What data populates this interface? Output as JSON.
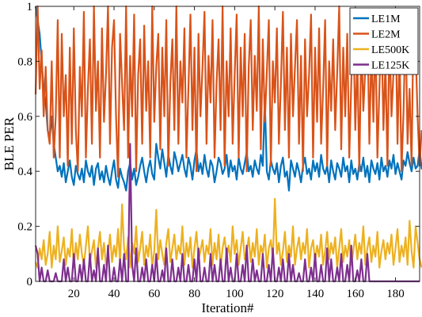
{
  "chart_data": {
    "type": "line",
    "title": "",
    "xlabel": "Iteration#",
    "ylabel": "BLE PER",
    "xlim": [
      1,
      192
    ],
    "ylim": [
      0,
      1
    ],
    "x_ticks": [
      20,
      40,
      60,
      80,
      100,
      120,
      140,
      160,
      180
    ],
    "x_tick_labels": [
      "20",
      "40",
      "60",
      "80",
      "100",
      "120",
      "140",
      "160",
      "180"
    ],
    "y_ticks": [
      0,
      0.2,
      0.4,
      0.6,
      0.8,
      1
    ],
    "y_tick_labels": [
      "0",
      "0.2",
      "0.4",
      "0.6",
      "0.8",
      "1"
    ],
    "grid": false,
    "legend_position": "top-right",
    "x_start": 1,
    "series": [
      {
        "name": "LE1M",
        "color": "#0072BD",
        "values": [
          1,
          0.95,
          0.9,
          0.8,
          0.7,
          0.65,
          0.55,
          0.52,
          0.6,
          0.5,
          0.45,
          0.4,
          0.42,
          0.38,
          0.43,
          0.36,
          0.4,
          0.44,
          0.38,
          0.35,
          0.42,
          0.39,
          0.37,
          0.41,
          0.36,
          0.44,
          0.4,
          0.38,
          0.42,
          0.35,
          0.41,
          0.43,
          0.37,
          0.4,
          0.36,
          0.42,
          0.38,
          0.35,
          0.4,
          0.44,
          0.37,
          0.34,
          0.41,
          0.38,
          0.36,
          0.33,
          0.4,
          0.43,
          0.37,
          0.41,
          0.35,
          0.38,
          0.42,
          0.45,
          0.4,
          0.36,
          0.41,
          0.44,
          0.39,
          0.37,
          0.5,
          0.45,
          0.41,
          0.48,
          0.43,
          0.38,
          0.46,
          0.42,
          0.39,
          0.47,
          0.44,
          0.4,
          0.43,
          0.46,
          0.41,
          0.38,
          0.45,
          0.42,
          0.37,
          0.44,
          0.48,
          0.4,
          0.43,
          0.39,
          0.46,
          0.41,
          0.38,
          0.44,
          0.42,
          0.36,
          0.4,
          0.45,
          0.43,
          0.39,
          0.41,
          0.46,
          0.38,
          0.44,
          0.4,
          0.42,
          0.37,
          0.45,
          0.41,
          0.39,
          0.43,
          0.47,
          0.4,
          0.42,
          0.38,
          0.44,
          0.41,
          0.39,
          0.46,
          0.42,
          0.66,
          0.4,
          0.37,
          0.44,
          0.41,
          0.39,
          0.43,
          0.36,
          0.42,
          0.45,
          0.38,
          0.4,
          0.33,
          0.44,
          0.41,
          0.38,
          0.43,
          0.4,
          0.36,
          0.42,
          0.45,
          0.39,
          0.41,
          0.37,
          0.44,
          0.4,
          0.43,
          0.38,
          0.46,
          0.41,
          0.39,
          0.42,
          0.36,
          0.44,
          0.4,
          0.37,
          0.43,
          0.41,
          0.38,
          0.45,
          0.4,
          0.42,
          0.36,
          0.44,
          0.39,
          0.41,
          0.37,
          0.43,
          0.4,
          0.45,
          0.38,
          0.42,
          0.36,
          0.44,
          0.41,
          0.39,
          0.43,
          0.37,
          0.45,
          0.4,
          0.42,
          0.38,
          0.44,
          0.41,
          0.46,
          0.39,
          0.43,
          0.4,
          0.37,
          0.44,
          0.42,
          0.47,
          0.43,
          0.4,
          0.45,
          0.41,
          0.42,
          0.48,
          0.41,
          0.42
        ]
      },
      {
        "name": "LE2M",
        "color": "#D95319",
        "values": [
          0.68,
          1,
          0.7,
          0.84,
          0.6,
          0.78,
          0.55,
          0.5,
          0.8,
          0.45,
          0.6,
          0.95,
          0.45,
          0.9,
          0.6,
          0.75,
          0.42,
          0.85,
          0.5,
          0.92,
          0.55,
          0.4,
          0.78,
          0.6,
          0.98,
          0.45,
          0.7,
          0.88,
          0.5,
          1,
          0.62,
          0.8,
          0.45,
          0.92,
          0.58,
          0.75,
          1,
          0.5,
          0.85,
          0.95,
          0.6,
          0.38,
          0.9,
          0.72,
          0.55,
          1,
          0.45,
          0.82,
          0.6,
          0.97,
          0.4,
          0.75,
          0.88,
          0.5,
          0.93,
          0.62,
          0.8,
          0.45,
          1,
          0.58,
          0.78,
          0.9,
          0.48,
          0.85,
          0.6,
          0.95,
          0.42,
          0.72,
          0.88,
          0.55,
          1,
          0.5,
          0.8,
          0.65,
          0.92,
          0.45,
          0.7,
          0.97,
          0.55,
          0.85,
          0.4,
          0.9,
          0.6,
          0.78,
          0.98,
          0.5,
          0.82,
          0.65,
          0.95,
          0.45,
          0.72,
          0.88,
          0.55,
          1,
          0.42,
          0.8,
          0.6,
          0.92,
          0.5,
          0.75,
          0.97,
          0.45,
          0.85,
          0.6,
          0.9,
          0.4,
          0.78,
          0.95,
          0.55,
          0.82,
          0.62,
          1,
          0.48,
          0.88,
          0.58,
          0.76,
          0.95,
          0.42,
          0.8,
          0.65,
          0.92,
          0.5,
          0.72,
          0.98,
          0.55,
          0.85,
          0.45,
          0.9,
          0.6,
          0.78,
          0.95,
          0.5,
          0.82,
          0.4,
          0.88,
          0.6,
          0.75,
          0.97,
          0.45,
          0.85,
          0.58,
          0.92,
          0.5,
          0.7,
          0.95,
          0.42,
          0.8,
          0.62,
          0.88,
          0.55,
          0.76,
          1,
          0.48,
          0.85,
          0.6,
          0.9,
          0.45,
          0.72,
          0.95,
          0.55,
          0.82,
          0.4,
          0.88,
          0.62,
          0.78,
          0.97,
          0.5,
          0.85,
          0.58,
          0.92,
          0.45,
          0.7,
          0.96,
          0.55,
          0.8,
          0.42,
          0.9,
          0.6,
          0.76,
          0.98,
          0.5,
          0.85,
          0.4,
          0.62,
          0.95,
          0.5,
          0.7,
          0.42,
          0.98,
          0.85,
          0.6,
          0.42,
          0.55
        ]
      },
      {
        "name": "LE500K",
        "color": "#EDB120",
        "values": [
          0.07,
          0.05,
          0.12,
          0.08,
          0.15,
          0.06,
          0.1,
          0.18,
          0.05,
          0.13,
          0.08,
          0.2,
          0.07,
          0.11,
          0.16,
          0.06,
          0.12,
          0.09,
          0.19,
          0.05,
          0.14,
          0.08,
          0.17,
          0.1,
          0.06,
          0.13,
          0.2,
          0.07,
          0.11,
          0.15,
          0.05,
          0.12,
          0.18,
          0.08,
          0.14,
          0.06,
          0.1,
          0.17,
          0.07,
          0.13,
          0.09,
          0.19,
          0.06,
          0.28,
          0.12,
          0.08,
          0.16,
          0.05,
          0.14,
          0.1,
          0.2,
          0.07,
          0.12,
          0.18,
          0.06,
          0.13,
          0.09,
          0.17,
          0.05,
          0.11,
          0.26,
          0.08,
          0.15,
          0.1,
          0.06,
          0.14,
          0.19,
          0.07,
          0.12,
          0.17,
          0.08,
          0.13,
          0.1,
          0.2,
          0.06,
          0.14,
          0.09,
          0.16,
          0.05,
          0.12,
          0.18,
          0.08,
          0.11,
          0.15,
          0.07,
          0.13,
          0.1,
          0.19,
          0.06,
          0.14,
          0.08,
          0.17,
          0.05,
          0.12,
          0.16,
          0.09,
          0.13,
          0.07,
          0.2,
          0.1,
          0.15,
          0.06,
          0.12,
          0.18,
          0.08,
          0.11,
          0.16,
          0.07,
          0.14,
          0.09,
          0.19,
          0.06,
          0.13,
          0.1,
          0.17,
          0.05,
          0.12,
          0.15,
          0.08,
          0.3,
          0.1,
          0.14,
          0.06,
          0.11,
          0.18,
          0.07,
          0.13,
          0.09,
          0.2,
          0.06,
          0.12,
          0.16,
          0.08,
          0.14,
          0.1,
          0.19,
          0.05,
          0.12,
          0.15,
          0.07,
          0.13,
          0.09,
          0.17,
          0.06,
          0.11,
          0.18,
          0.08,
          0.14,
          0.1,
          0.16,
          0.05,
          0.12,
          0.19,
          0.07,
          0.13,
          0.09,
          0.15,
          0.06,
          0.11,
          0.17,
          0.08,
          0.14,
          0.1,
          0.2,
          0.06,
          0.12,
          0.16,
          0.07,
          0.13,
          0.09,
          0.18,
          0.05,
          0.11,
          0.15,
          0.08,
          0.14,
          0.1,
          0.17,
          0.06,
          0.12,
          0.19,
          0.07,
          0.13,
          0.09,
          0.16,
          0.06,
          0.22,
          0.11,
          0.05,
          0.2,
          0.14,
          0.08,
          0.05
        ]
      },
      {
        "name": "LE125K",
        "color": "#7E2F8E",
        "values": [
          0.13,
          0.1,
          0,
          0.05,
          0,
          0,
          0.04,
          0,
          0,
          0,
          0.03,
          0,
          0,
          0,
          0.08,
          0,
          0.05,
          0,
          0,
          0.1,
          0,
          0,
          0.06,
          0,
          0.08,
          0,
          0,
          0.1,
          0,
          0.04,
          0,
          0.12,
          0,
          0,
          0.06,
          0,
          0.13,
          0,
          0,
          0.05,
          0,
          0,
          0.08,
          0,
          0.1,
          0,
          0,
          0.5,
          0.06,
          0,
          0.12,
          0,
          0,
          0.05,
          0,
          0.08,
          0,
          0,
          0.06,
          0,
          0.1,
          0,
          0,
          0.04,
          0,
          0.12,
          0,
          0,
          0.08,
          0,
          0,
          0.05,
          0,
          0.1,
          0,
          0,
          0.06,
          0,
          0,
          0.08,
          0,
          0.12,
          0,
          0,
          0.05,
          0,
          0,
          0.1,
          0,
          0.06,
          0,
          0,
          0.08,
          0,
          0,
          0.12,
          0,
          0.05,
          0,
          0,
          0.1,
          0,
          0,
          0.06,
          0,
          0.13,
          0,
          0,
          0.08,
          0,
          0.04,
          0,
          0,
          0.1,
          0,
          0,
          0.06,
          0,
          0.12,
          0,
          0,
          0.05,
          0,
          0.08,
          0,
          0,
          0.1,
          0,
          0.06,
          0,
          0,
          0.03,
          0,
          0,
          0.08,
          0,
          0,
          0.05,
          0,
          0.1,
          0,
          0,
          0.06,
          0,
          0,
          0.12,
          0,
          0.08,
          0,
          0,
          0.05,
          0,
          0.1,
          0,
          0,
          0.06,
          0,
          0.13,
          0,
          0,
          0.04,
          0,
          0.08,
          0,
          0,
          0.1,
          0,
          0,
          0,
          0,
          0,
          0,
          0,
          0,
          0,
          0,
          0,
          0,
          0,
          0,
          0,
          0,
          0,
          0,
          0,
          0,
          0,
          0,
          0,
          0,
          0,
          0
        ]
      }
    ]
  }
}
